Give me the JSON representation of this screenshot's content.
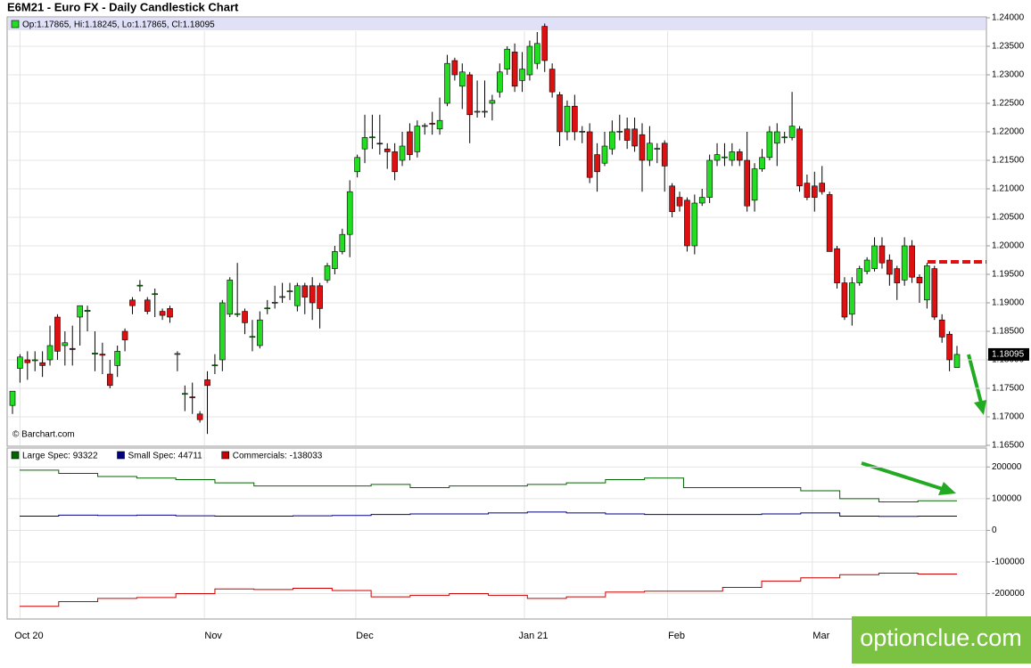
{
  "chart_data": [
    {
      "type": "candlestick",
      "title": "E6M21 - Euro FX - Daily Candlestick Chart",
      "legend": "Op:1.17865, Hi:1.18245, Lo:1.17865, Cl:1.18095",
      "source": "© Barchart.com",
      "last_label": "1.18095",
      "watermark": "optionclue.com",
      "up_color": "#22dd22",
      "down_color": "#dd1111",
      "ylim": [
        1.165,
        1.24
      ],
      "yticks": [
        {
          "value": 1.24,
          "label": "1.24000"
        },
        {
          "value": 1.235,
          "label": "1.23500"
        },
        {
          "value": 1.23,
          "label": "1.23000"
        },
        {
          "value": 1.225,
          "label": "1.22500"
        },
        {
          "value": 1.22,
          "label": "1.22000"
        },
        {
          "value": 1.215,
          "label": "1.21500"
        },
        {
          "value": 1.21,
          "label": "1.21000"
        },
        {
          "value": 1.205,
          "label": "1.20500"
        },
        {
          "value": 1.2,
          "label": "1.20000"
        },
        {
          "value": 1.195,
          "label": "1.19500"
        },
        {
          "value": 1.19,
          "label": "1.19000"
        },
        {
          "value": 1.185,
          "label": "1.18500"
        },
        {
          "value": 1.18,
          "label": "1.18000"
        },
        {
          "value": 1.175,
          "label": "1.17500"
        },
        {
          "value": 1.17,
          "label": "1.17000"
        },
        {
          "value": 1.165,
          "label": "1.16500"
        }
      ],
      "xlim": [
        0,
        126
      ],
      "xticks": [
        {
          "value": 1,
          "label": "Oct 20"
        },
        {
          "value": 25.6,
          "label": "Nov"
        },
        {
          "value": 45.8,
          "label": "Dec"
        },
        {
          "value": 68.3,
          "label": "Jan 21"
        },
        {
          "value": 87.4,
          "label": "Feb"
        },
        {
          "value": 106.7,
          "label": "Mar"
        }
      ],
      "grid": true,
      "ohlc": [
        [
          1.172,
          1.1745,
          1.1705,
          1.1745
        ],
        [
          1.1785,
          1.181,
          1.176,
          1.1805
        ],
        [
          1.18,
          1.1815,
          1.1765,
          1.1795
        ],
        [
          1.18,
          1.1815,
          1.178,
          1.18
        ],
        [
          1.1795,
          1.1815,
          1.177,
          1.179
        ],
        [
          1.18,
          1.186,
          1.179,
          1.1825
        ],
        [
          1.1875,
          1.188,
          1.18,
          1.1815
        ],
        [
          1.1825,
          1.185,
          1.179,
          1.183
        ],
        [
          1.182,
          1.186,
          1.179,
          1.1818
        ],
        [
          1.1875,
          1.1895,
          1.1825,
          1.1895
        ],
        [
          1.1885,
          1.1895,
          1.185,
          1.1887
        ],
        [
          1.181,
          1.185,
          1.178,
          1.1812
        ],
        [
          1.181,
          1.183,
          1.1775,
          1.1808
        ],
        [
          1.1775,
          1.18,
          1.175,
          1.1755
        ],
        [
          1.179,
          1.1825,
          1.177,
          1.1815
        ],
        [
          1.185,
          1.1855,
          1.1815,
          1.1835
        ],
        [
          1.1905,
          1.191,
          1.188,
          1.1895
        ],
        [
          1.193,
          1.194,
          1.192,
          1.1931
        ],
        [
          1.1905,
          1.191,
          1.188,
          1.1885
        ],
        [
          1.1915,
          1.1925,
          1.1875,
          1.1916
        ],
        [
          1.1885,
          1.189,
          1.187,
          1.1878
        ],
        [
          1.189,
          1.1895,
          1.1865,
          1.1875
        ],
        [
          1.181,
          1.1815,
          1.178,
          1.1811
        ],
        [
          1.174,
          1.1755,
          1.171,
          1.1741
        ],
        [
          1.1735,
          1.176,
          1.1705,
          1.1734
        ],
        [
          1.1705,
          1.171,
          1.169,
          1.1695
        ],
        [
          1.1765,
          1.178,
          1.167,
          1.1755
        ],
        [
          1.179,
          1.181,
          1.1775,
          1.1791
        ],
        [
          1.18,
          1.1905,
          1.178,
          1.19
        ],
        [
          1.188,
          1.1945,
          1.1875,
          1.194
        ],
        [
          1.188,
          1.197,
          1.1875,
          1.1881
        ],
        [
          1.1885,
          1.189,
          1.1845,
          1.1865
        ],
        [
          1.184,
          1.187,
          1.1815,
          1.1841
        ],
        [
          1.1825,
          1.1885,
          1.182,
          1.187
        ],
        [
          1.189,
          1.1905,
          1.188,
          1.1891
        ],
        [
          1.19,
          1.193,
          1.189,
          1.1901
        ],
        [
          1.191,
          1.1935,
          1.19,
          1.1911
        ],
        [
          1.192,
          1.1935,
          1.1905,
          1.1921
        ],
        [
          1.1895,
          1.1935,
          1.1885,
          1.193
        ],
        [
          1.193,
          1.1935,
          1.188,
          1.191
        ],
        [
          1.193,
          1.1945,
          1.187,
          1.19
        ],
        [
          1.193,
          1.1935,
          1.1855,
          1.189
        ],
        [
          1.194,
          1.197,
          1.1935,
          1.1965
        ],
        [
          1.196,
          1.2,
          1.195,
          1.199
        ],
        [
          1.199,
          1.203,
          1.1985,
          1.202
        ],
        [
          1.202,
          1.2115,
          1.198,
          1.2095
        ],
        [
          1.213,
          1.216,
          1.212,
          1.2155
        ],
        [
          1.217,
          1.223,
          1.2145,
          1.219
        ],
        [
          1.219,
          1.223,
          1.217,
          1.2191
        ],
        [
          1.218,
          1.223,
          1.216,
          1.2179
        ],
        [
          1.217,
          1.218,
          1.2135,
          1.2165
        ],
        [
          1.2165,
          1.218,
          1.2115,
          1.213
        ],
        [
          1.215,
          1.22,
          1.214,
          1.2175
        ],
        [
          1.22,
          1.2215,
          1.215,
          1.216
        ],
        [
          1.2165,
          1.222,
          1.2155,
          1.221
        ],
        [
          1.221,
          1.2215,
          1.2195,
          1.2211
        ],
        [
          1.2215,
          1.2235,
          1.2195,
          1.2214
        ],
        [
          1.2205,
          1.226,
          1.2195,
          1.222
        ],
        [
          1.225,
          1.2335,
          1.2245,
          1.232
        ],
        [
          1.2325,
          1.233,
          1.229,
          1.23
        ],
        [
          1.228,
          1.232,
          1.224,
          1.2305
        ],
        [
          1.23,
          1.2305,
          1.218,
          1.223
        ],
        [
          1.2235,
          1.229,
          1.2225,
          1.2236
        ],
        [
          1.2235,
          1.229,
          1.2225,
          1.2236
        ],
        [
          1.225,
          1.2265,
          1.222,
          1.2255
        ],
        [
          1.227,
          1.232,
          1.226,
          1.2305
        ],
        [
          1.231,
          1.235,
          1.23,
          1.2345
        ],
        [
          1.234,
          1.2355,
          1.227,
          1.228
        ],
        [
          1.229,
          1.234,
          1.227,
          1.231
        ],
        [
          1.23,
          1.236,
          1.229,
          1.235
        ],
        [
          1.232,
          1.2375,
          1.231,
          1.2355
        ],
        [
          1.2385,
          1.239,
          1.2305,
          1.2325
        ],
        [
          1.231,
          1.232,
          1.226,
          1.227
        ],
        [
          1.2265,
          1.227,
          1.2175,
          1.22
        ],
        [
          1.22,
          1.2255,
          1.2185,
          1.2245
        ],
        [
          1.2245,
          1.2265,
          1.2185,
          1.22
        ],
        [
          1.22,
          1.221,
          1.218,
          1.2201
        ],
        [
          1.22,
          1.2215,
          1.211,
          1.212
        ],
        [
          1.216,
          1.218,
          1.2095,
          1.213
        ],
        [
          1.2145,
          1.22,
          1.214,
          1.2175
        ],
        [
          1.217,
          1.222,
          1.216,
          1.22
        ],
        [
          1.22,
          1.223,
          1.2185,
          1.2201
        ],
        [
          1.2205,
          1.2225,
          1.217,
          1.2185
        ],
        [
          1.2205,
          1.2225,
          1.2165,
          1.2175
        ],
        [
          1.2195,
          1.2215,
          1.2095,
          1.215
        ],
        [
          1.215,
          1.221,
          1.214,
          1.218
        ],
        [
          1.217,
          1.218,
          1.2145,
          1.2171
        ],
        [
          1.218,
          1.2185,
          1.2095,
          1.214
        ],
        [
          1.2105,
          1.211,
          1.205,
          1.206
        ],
        [
          1.2085,
          1.2095,
          1.206,
          1.207
        ],
        [
          1.208,
          1.2085,
          1.199,
          1.2
        ],
        [
          1.2,
          1.209,
          1.1985,
          1.2075
        ],
        [
          1.2075,
          1.21,
          1.207,
          1.2085
        ],
        [
          1.2085,
          1.216,
          1.2075,
          1.215
        ],
        [
          1.215,
          1.218,
          1.214,
          1.216
        ],
        [
          1.2155,
          1.218,
          1.214,
          1.2156
        ],
        [
          1.215,
          1.218,
          1.214,
          1.2165
        ],
        [
          1.2165,
          1.217,
          1.214,
          1.215
        ],
        [
          1.215,
          1.22,
          1.206,
          1.207
        ],
        [
          1.208,
          1.2145,
          1.206,
          1.2135
        ],
        [
          1.2135,
          1.217,
          1.213,
          1.2155
        ],
        [
          1.2155,
          1.221,
          1.215,
          1.22
        ],
        [
          1.218,
          1.2215,
          1.214,
          1.22
        ],
        [
          1.219,
          1.22,
          1.218,
          1.2191
        ],
        [
          1.219,
          1.227,
          1.2185,
          1.221
        ],
        [
          1.2205,
          1.221,
          1.2095,
          1.2105
        ],
        [
          1.211,
          1.2125,
          1.208,
          1.2085
        ],
        [
          1.2105,
          1.213,
          1.206,
          1.2085
        ],
        [
          1.211,
          1.214,
          1.209,
          1.2095
        ],
        [
          1.209,
          1.2095,
          1.199,
          1.199
        ],
        [
          1.1995,
          1.2,
          1.1925,
          1.1935
        ],
        [
          1.1935,
          1.1945,
          1.187,
          1.1875
        ],
        [
          1.188,
          1.1945,
          1.186,
          1.1935
        ],
        [
          1.1935,
          1.1965,
          1.193,
          1.196
        ],
        [
          1.1955,
          1.198,
          1.195,
          1.1975
        ],
        [
          1.196,
          1.2015,
          1.1955,
          1.2
        ],
        [
          1.2,
          1.2015,
          1.196,
          1.197
        ],
        [
          1.1975,
          1.1985,
          1.193,
          1.195
        ],
        [
          1.196,
          1.1965,
          1.1905,
          1.1935
        ],
        [
          1.194,
          1.2015,
          1.193,
          1.2
        ],
        [
          1.2,
          1.201,
          1.1935,
          1.1945
        ],
        [
          1.1945,
          1.195,
          1.19,
          1.1935
        ],
        [
          1.1905,
          1.197,
          1.189,
          1.1965
        ],
        [
          1.196,
          1.1965,
          1.187,
          1.1875
        ],
        [
          1.187,
          1.188,
          1.183,
          1.184
        ],
        [
          1.1845,
          1.185,
          1.178,
          1.18
        ],
        [
          1.17865,
          1.18245,
          1.17865,
          1.18095
        ]
      ]
    },
    {
      "type": "step",
      "ylim": [
        -280000,
        260000
      ],
      "yticks": [
        200000,
        100000,
        0,
        -100000,
        -200000
      ],
      "grid": true,
      "series": [
        {
          "name": "Large Spec: 93322",
          "color": "#006600",
          "values": [
            190000,
            180000,
            170000,
            165000,
            160000,
            150000,
            140000,
            140000,
            140000,
            145000,
            135000,
            140000,
            140000,
            145000,
            150000,
            160000,
            165000,
            135000,
            135000,
            135000,
            125000,
            100000,
            90000,
            93322
          ]
        },
        {
          "name": "Small Spec: 44711",
          "color": "#000080",
          "values": [
            45000,
            48000,
            47000,
            48000,
            46000,
            45000,
            45000,
            46000,
            47000,
            50000,
            52000,
            52000,
            55000,
            58000,
            55000,
            52000,
            50000,
            50000,
            50000,
            52000,
            55000,
            45000,
            44000,
            44711
          ]
        },
        {
          "name": "Commercials: -138033",
          "color": "#cc0000",
          "values": [
            -240000,
            -225000,
            -215000,
            -212000,
            -200000,
            -185000,
            -187000,
            -183000,
            -190000,
            -210000,
            -205000,
            -200000,
            -205000,
            -215000,
            -210000,
            -195000,
            -192000,
            -192000,
            -180000,
            -160000,
            -150000,
            -140000,
            -135000,
            -138033
          ]
        }
      ]
    }
  ]
}
